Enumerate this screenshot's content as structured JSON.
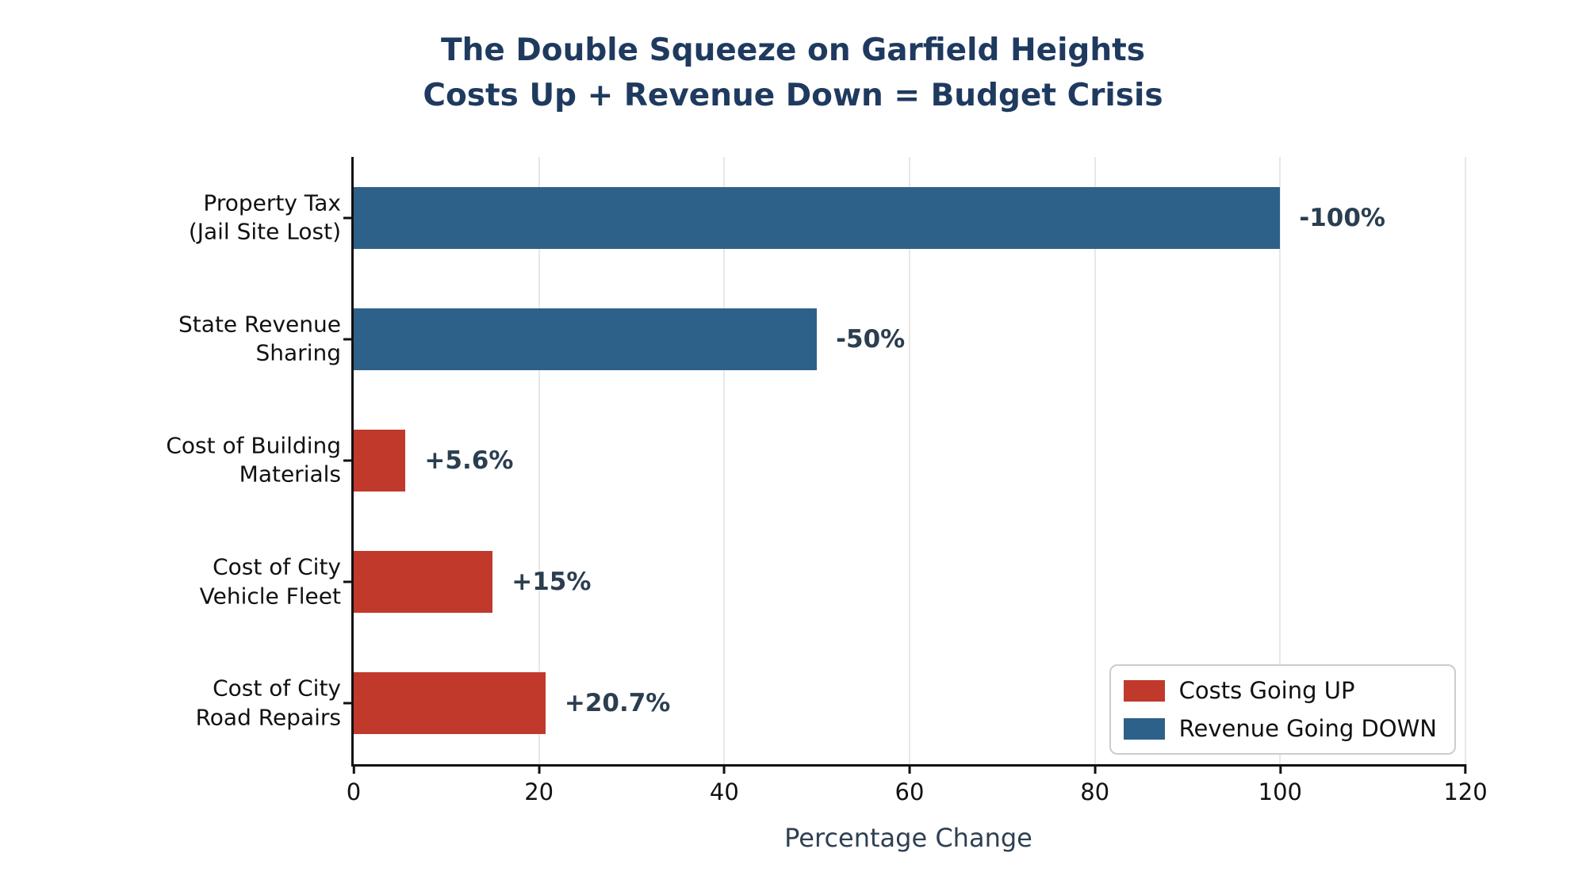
{
  "title": {
    "line1": "The Double Squeeze on Garfield Heights",
    "line2": "Costs Up + Revenue Down = Budget Crisis"
  },
  "chart_data": {
    "type": "bar",
    "orientation": "horizontal",
    "categories": [
      [
        "Property Tax",
        "(Jail Site Lost)"
      ],
      [
        "State Revenue",
        "Sharing"
      ],
      [
        "Cost of Building",
        "Materials"
      ],
      [
        "Cost of City",
        "Vehicle Fleet"
      ],
      [
        "Cost of City",
        "Road Repairs"
      ]
    ],
    "values": [
      100,
      50,
      5.6,
      15,
      20.7
    ],
    "signed_values": [
      -100,
      -50,
      5.6,
      15,
      20.7
    ],
    "bar_labels": [
      "-100%",
      "-50%",
      "+5.6%",
      "+15%",
      "+20.7%"
    ],
    "bar_colors": [
      "#2e6189",
      "#2e6189",
      "#c0392b",
      "#c0392b",
      "#c0392b"
    ],
    "xlabel": "Percentage Change",
    "xlim": [
      0,
      120
    ],
    "xticks": [
      0,
      20,
      40,
      60,
      80,
      100,
      120
    ],
    "grid": "vertical light gray gridlines at each x tick",
    "legend": {
      "position": "lower right",
      "entries": [
        {
          "label": "Costs Going UP",
          "color": "#c0392b"
        },
        {
          "label": "Revenue Going DOWN",
          "color": "#2e6189"
        }
      ]
    }
  },
  "colors": {
    "title": "#1f3a5f",
    "value_label": "#2b3e50",
    "axis_label": "#2e4053",
    "costs_up": "#c0392b",
    "revenue_down": "#2e6189",
    "gridline": "#e8e8e8",
    "spine": "#111111"
  }
}
